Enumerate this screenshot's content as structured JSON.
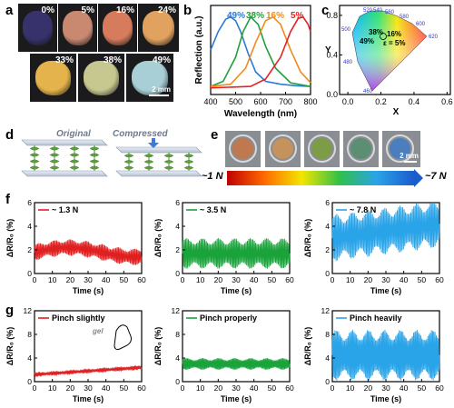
{
  "panel_labels": {
    "a": "a",
    "b": "b",
    "c": "c",
    "d": "d",
    "e": "e",
    "f": "f",
    "g": "g"
  },
  "panel_a": {
    "photos": [
      {
        "label": "0%",
        "color": "#37326b"
      },
      {
        "label": "5%",
        "color": "#c98870"
      },
      {
        "label": "16%",
        "color": "#d67c5c"
      },
      {
        "label": "24%",
        "color": "#e0a25e"
      },
      {
        "label": "33%",
        "color": "#e5b34c"
      },
      {
        "label": "38%",
        "color": "#c7c88f"
      },
      {
        "label": "49%",
        "color": "#a8cfd6"
      }
    ],
    "scale_bar": "2 mm"
  },
  "chart_data": [
    {
      "panel": "b",
      "type": "line",
      "xlabel": "Wavelength (nm)",
      "ylabel": "Reflection (a.u.)",
      "xlim": [
        400,
        800
      ],
      "xticks": [
        400,
        500,
        600,
        700,
        800
      ],
      "series": [
        {
          "name": "49%",
          "color": "#2a7ad6",
          "x": [
            400,
            430,
            460,
            480,
            500,
            520,
            550,
            580,
            620,
            680,
            740,
            800
          ],
          "y": [
            0.55,
            0.8,
            0.97,
            1.0,
            0.95,
            0.8,
            0.5,
            0.25,
            0.12,
            0.08,
            0.06,
            0.05
          ]
        },
        {
          "name": "38%",
          "color": "#21a03a",
          "x": [
            400,
            450,
            500,
            530,
            560,
            590,
            620,
            660,
            720,
            800
          ],
          "y": [
            0.05,
            0.12,
            0.45,
            0.8,
            1.0,
            0.9,
            0.6,
            0.3,
            0.1,
            0.05
          ]
        },
        {
          "name": "16%",
          "color": "#f08b1c",
          "x": [
            400,
            480,
            540,
            580,
            620,
            650,
            680,
            720,
            760,
            800
          ],
          "y": [
            0.05,
            0.08,
            0.3,
            0.65,
            0.95,
            1.0,
            0.9,
            0.55,
            0.25,
            0.1
          ]
        },
        {
          "name": "5%",
          "color": "#e52222",
          "x": [
            400,
            560,
            620,
            680,
            720,
            750,
            770,
            790,
            800
          ],
          "y": [
            0.03,
            0.05,
            0.15,
            0.45,
            0.8,
            0.98,
            1.0,
            0.9,
            0.8
          ]
        }
      ]
    },
    {
      "panel": "c",
      "type": "scatter",
      "xlabel": "X",
      "ylabel": "Y",
      "xlim": [
        -0.05,
        0.62
      ],
      "ylim": [
        0,
        0.9
      ],
      "xticks": [
        0.0,
        0.2,
        0.4,
        0.6
      ],
      "yticks": [
        0.0,
        0.4,
        0.8
      ],
      "locus_labels": [
        "520",
        "540",
        "560",
        "580",
        "600",
        "620",
        "500",
        "480",
        "460"
      ],
      "annotations": [
        "38%",
        "16%",
        "49%",
        "ε = 5%"
      ]
    },
    {
      "panel": "f",
      "type": "line",
      "xlabel": "Time (s)",
      "ylabel": "ΔR/R₀ (%)",
      "plots": [
        {
          "name": "~ 1.3 N",
          "color": "#e02020",
          "xlim": [
            0,
            60
          ],
          "ylim": [
            0,
            6
          ],
          "yticks": [
            0,
            2,
            4,
            6
          ],
          "mean": 1.8,
          "amp": 0.7,
          "freq": 1.3
        },
        {
          "name": "~ 3.5 N",
          "color": "#1aa33a",
          "xlim": [
            0,
            60
          ],
          "ylim": [
            0,
            6
          ],
          "yticks": [
            0,
            2,
            4,
            6
          ],
          "mean": 1.7,
          "amp": 1.3,
          "freq": 1.3
        },
        {
          "name": "~ 7.8 N",
          "color": "#2aa4e8",
          "xlim": [
            0,
            60
          ],
          "ylim": [
            0,
            6
          ],
          "yticks": [
            0,
            2,
            4,
            6
          ],
          "mean": 3.6,
          "amp": 2.0,
          "freq": 1.3
        }
      ]
    },
    {
      "panel": "g",
      "type": "line",
      "xlabel": "Time (s)",
      "ylabel": "ΔR/R₀ (%)",
      "plots": [
        {
          "name": "Pinch slightly",
          "color": "#e02020",
          "xlim": [
            0,
            60
          ],
          "ylim": [
            0,
            12
          ],
          "yticks": [
            0,
            4,
            8,
            12
          ],
          "mean": 1.2,
          "amp": 0.3,
          "freq": 1.5
        },
        {
          "name": "Pinch properly",
          "color": "#1aa33a",
          "xlim": [
            0,
            60
          ],
          "ylim": [
            0,
            12
          ],
          "yticks": [
            0,
            4,
            8,
            12
          ],
          "mean": 3.0,
          "amp": 1.0,
          "freq": 1.5
        },
        {
          "name": "Pinch heavily",
          "color": "#2aa4e8",
          "xlim": [
            0,
            60
          ],
          "ylim": [
            0,
            12
          ],
          "yticks": [
            0,
            4,
            8,
            12
          ],
          "mean": 4.5,
          "amp": 4.3,
          "freq": 1.5
        }
      ],
      "inset_label": "gel"
    }
  ],
  "panel_d": {
    "original": "Original",
    "compressed": "Compressed"
  },
  "panel_e": {
    "dish_colors": [
      "#c0784e",
      "#c4925a",
      "#7c9c46",
      "#5c8e72",
      "#4a7ebf"
    ],
    "scale_bar": "2 mm",
    "force_min": "~1 N",
    "force_max": "~7 N",
    "gradient": [
      "#c00000",
      "#ff6a00",
      "#f3e600",
      "#2fc04a",
      "#2aa4e8",
      "#1b5ccc"
    ]
  }
}
